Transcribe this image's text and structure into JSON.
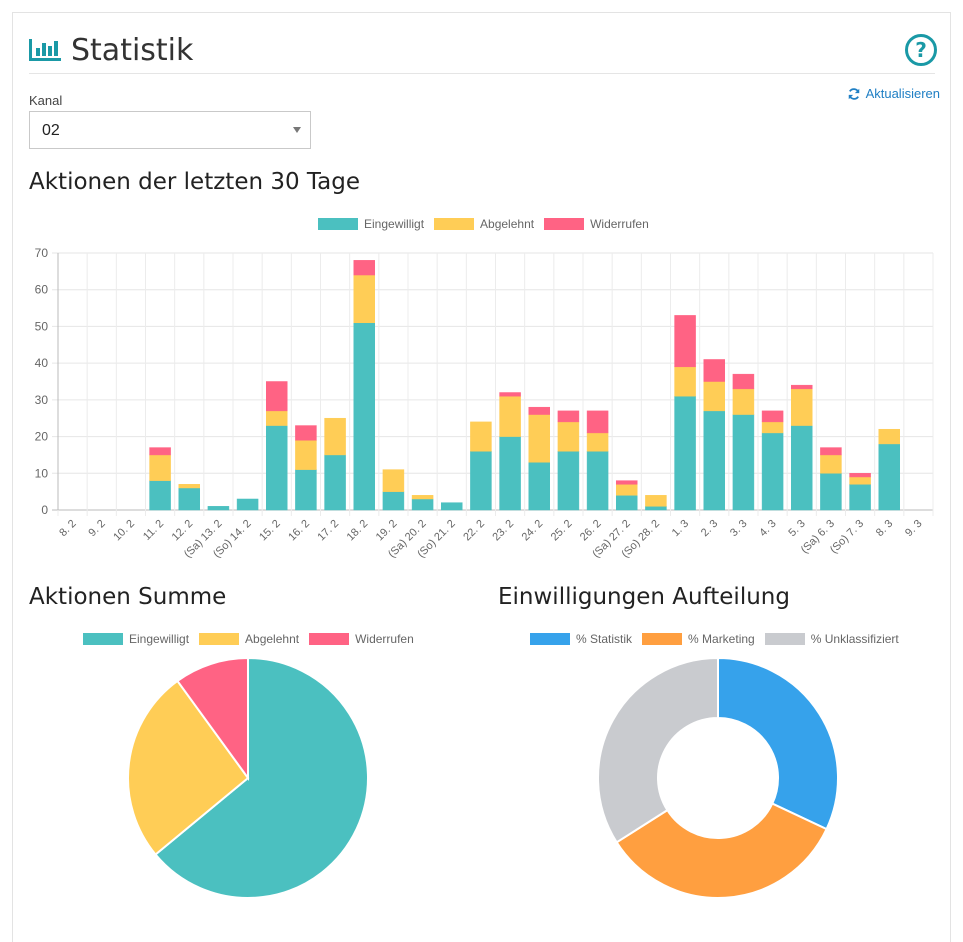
{
  "header": {
    "title": "Statistik",
    "help_label": "?"
  },
  "refresh_label": "Aktualisieren",
  "kanal": {
    "label": "Kanal",
    "value": "02"
  },
  "sections": {
    "bar_title": "Aktionen der letzten 30 Tage",
    "pie_title": "Aktionen Summe",
    "donut_title": "Einwilligungen Aufteilung"
  },
  "colors": {
    "teal": "#4bc0c0",
    "yellow": "#ffcd56",
    "pink": "#ff6384",
    "blue": "#36a2eb",
    "orange": "#ff9f40",
    "grey": "#c9cbcf",
    "accent": "#1a99a6",
    "link": "#1f7fc4"
  },
  "chart_data": [
    {
      "type": "bar",
      "stacked": true,
      "title": "Aktionen der letzten 30 Tage",
      "categories": [
        "8. 2",
        "9. 2",
        "10. 2",
        "11. 2",
        "12. 2",
        "(Sa) 13. 2",
        "(So) 14. 2",
        "15. 2",
        "16. 2",
        "17. 2",
        "18. 2",
        "19. 2",
        "(Sa) 20. 2",
        "(So) 21. 2",
        "22. 2",
        "23. 2",
        "24. 2",
        "25. 2",
        "26. 2",
        "(Sa) 27. 2",
        "(So) 28. 2",
        "1. 3",
        "2. 3",
        "3. 3",
        "4. 3",
        "5. 3",
        "(Sa) 6. 3",
        "(So) 7. 3",
        "8. 3",
        "9. 3"
      ],
      "series": [
        {
          "name": "Eingewilligt",
          "color": "#4bc0c0",
          "values": [
            0,
            0,
            0,
            8,
            6,
            1,
            3,
            23,
            11,
            15,
            51,
            5,
            3,
            2,
            16,
            20,
            13,
            16,
            16,
            4,
            1,
            31,
            27,
            26,
            21,
            23,
            10,
            7,
            18,
            0
          ]
        },
        {
          "name": "Abgelehnt",
          "color": "#ffcd56",
          "values": [
            0,
            0,
            0,
            7,
            1,
            0,
            0,
            4,
            8,
            10,
            13,
            6,
            1,
            0,
            8,
            11,
            13,
            8,
            5,
            3,
            3,
            8,
            8,
            7,
            3,
            10,
            5,
            2,
            4,
            0
          ]
        },
        {
          "name": "Widerrufen",
          "color": "#ff6384",
          "values": [
            0,
            0,
            0,
            2,
            0,
            0,
            0,
            8,
            4,
            0,
            4,
            0,
            0,
            0,
            0,
            1,
            2,
            3,
            6,
            1,
            0,
            14,
            6,
            4,
            3,
            1,
            2,
            1,
            0,
            0
          ]
        }
      ],
      "ylim": [
        0,
        70
      ],
      "yticks": [
        0,
        10,
        20,
        30,
        40,
        50,
        60,
        70
      ],
      "grid": true,
      "legend": "top"
    },
    {
      "type": "pie",
      "title": "Aktionen Summe",
      "labels": [
        "Eingewilligt",
        "Abgelehnt",
        "Widerrufen"
      ],
      "colors": [
        "#4bc0c0",
        "#ffcd56",
        "#ff6384"
      ],
      "values": [
        64,
        26,
        10
      ],
      "legend": "top"
    },
    {
      "type": "pie",
      "donut": true,
      "title": "Einwilligungen Aufteilung",
      "labels": [
        "% Statistik",
        "% Marketing",
        "% Unklassifiziert"
      ],
      "colors": [
        "#36a2eb",
        "#ff9f40",
        "#c9cbcf"
      ],
      "values": [
        32,
        34,
        34
      ],
      "legend": "top"
    }
  ]
}
